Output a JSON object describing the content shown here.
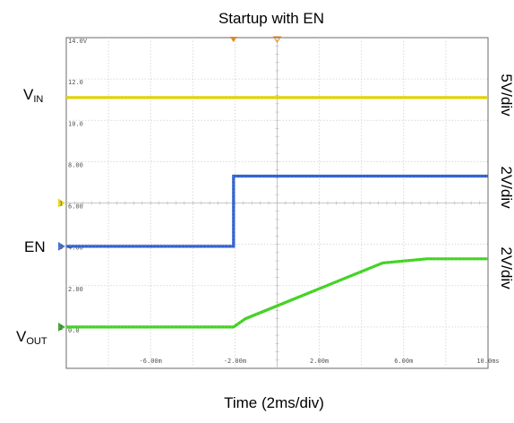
{
  "chart_data": {
    "type": "line",
    "title": "Startup with EN",
    "xlabel": "Time (2ms/div)",
    "ylabel": "",
    "x_tick_labels": [
      "-6.00m",
      "-2.00m",
      "2.00m",
      "6.00m",
      "10.0ms"
    ],
    "y_tick_labels": [
      "14.0V",
      "12.0",
      "10.0",
      "8.00",
      "6.00",
      "4.00",
      "2.00",
      "0.0"
    ],
    "xlim": [
      -10,
      10
    ],
    "ylim": [
      -2,
      14
    ],
    "grid": true,
    "grid_divisions": {
      "x": 10,
      "y": 8
    },
    "series": [
      {
        "name": "V_IN",
        "color": "#e0d000",
        "scale": "5V/div",
        "x": [
          -10,
          10
        ],
        "y": [
          11.1,
          11.1
        ]
      },
      {
        "name": "EN",
        "color": "#2f5fd0",
        "scale": "2V/div",
        "x": [
          -10,
          -2.07,
          -2.07,
          10
        ],
        "y": [
          3.9,
          3.9,
          7.3,
          7.3
        ]
      },
      {
        "name": "V_OUT",
        "color": "#3ed21e",
        "scale": "2V/div",
        "x": [
          -10,
          -2.07,
          -1.5,
          5,
          7.1,
          10
        ],
        "y": [
          0.0,
          0.0,
          0.4,
          3.1,
          3.3,
          3.3
        ]
      }
    ],
    "labels": {
      "vin": {
        "main": "V",
        "sub": "IN"
      },
      "en": "EN",
      "vout": {
        "main": "V",
        "sub": "OUT"
      },
      "scales": [
        "5V/div",
        "2V/div",
        "2V/div"
      ]
    },
    "channel_markers": [
      "1",
      "3",
      "2"
    ],
    "trigger_markers": [
      "top-left-trigger",
      "top-right-trigger"
    ]
  }
}
